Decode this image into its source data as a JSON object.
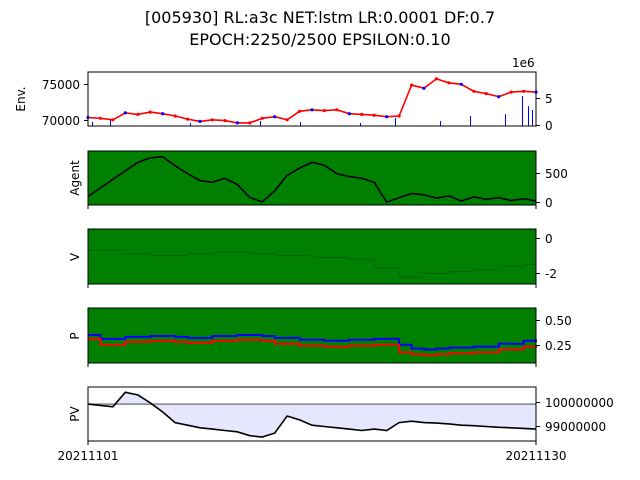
{
  "title": {
    "line1": "[005930] RL:a3c NET:lstm LR:0.0001 DF:0.7",
    "line2": "EPOCH:2250/2500 EPSILON:0.10"
  },
  "chart_data": [
    {
      "type": "line",
      "panel": "env",
      "ylabel": "Env.",
      "yticks": [
        "70000",
        "75000"
      ],
      "ylim": [
        69500,
        76500
      ],
      "y2ticks": [
        "0",
        "5"
      ],
      "y2_offset_label": "1e6",
      "y2lim": [
        0,
        9
      ],
      "series": [
        {
          "values": [
            70600,
            70500,
            70300,
            71200,
            71000,
            71300,
            71100,
            70800,
            70400,
            70100,
            70300,
            70200,
            69900,
            69900,
            70500,
            70700,
            70300,
            71400,
            71600,
            71500,
            71600,
            71100,
            71000,
            70900,
            70700,
            70800,
            74800,
            74400,
            75600,
            75100,
            74900,
            74000,
            73700,
            73300,
            73900,
            74000,
            73900
          ]
        }
      ],
      "colors": {
        "price": "#ff0000",
        "buy": "#ff0000",
        "sell": "#0000ff",
        "volume": "#0000ff"
      }
    },
    {
      "type": "line",
      "panel": "agent",
      "ylabel": "Agent",
      "yticks": [
        "0",
        "500"
      ],
      "ylim": [
        -50,
        900
      ],
      "series": [
        {
          "values": [
            100,
            250,
            400,
            550,
            700,
            780,
            800,
            640,
            500,
            380,
            350,
            420,
            310,
            80,
            5,
            200,
            470,
            600,
            700,
            650,
            500,
            450,
            420,
            350,
            0,
            80,
            150,
            130,
            70,
            110,
            20,
            90,
            50,
            80,
            30,
            60,
            20
          ]
        }
      ],
      "colors": {
        "background": "#008000",
        "line": "#000000"
      }
    },
    {
      "type": "line",
      "panel": "v",
      "ylabel": "V",
      "yticks": [
        "0",
        "-2"
      ],
      "ylim": [
        -2.6,
        0.5
      ],
      "series": [
        {
          "values": [
            -0.7,
            -0.7,
            -0.7,
            -0.9,
            -0.9,
            -1.0,
            -1.0,
            -1.0,
            -0.9,
            -0.9,
            -0.8,
            -0.8,
            -0.8,
            -0.9,
            -0.9,
            -1.0,
            -1.0,
            -1.0,
            -1.1,
            -1.1,
            -1.1,
            -1.2,
            -1.2,
            -1.7,
            -1.7,
            -2.2,
            -2.2,
            -2.0,
            -2.0,
            -1.9,
            -1.9,
            -1.8,
            -1.8,
            -1.6,
            -1.6,
            -1.5,
            -1.5
          ]
        }
      ],
      "colors": {
        "background": "#008000",
        "line": "#006400"
      }
    },
    {
      "type": "line",
      "panel": "p",
      "ylabel": "P",
      "yticks": [
        "0.50",
        "0.25"
      ],
      "ylim": [
        0.05,
        0.62
      ],
      "series": [
        {
          "values": [
            0.34,
            0.3,
            0.3,
            0.32,
            0.32,
            0.33,
            0.33,
            0.32,
            0.31,
            0.31,
            0.33,
            0.33,
            0.34,
            0.34,
            0.33,
            0.31,
            0.31,
            0.29,
            0.29,
            0.28,
            0.28,
            0.29,
            0.29,
            0.3,
            0.3,
            0.24,
            0.2,
            0.19,
            0.2,
            0.21,
            0.21,
            0.22,
            0.22,
            0.25,
            0.25,
            0.28,
            0.29
          ]
        },
        {
          "values": [
            0.3,
            0.24,
            0.24,
            0.27,
            0.27,
            0.28,
            0.28,
            0.27,
            0.26,
            0.26,
            0.28,
            0.28,
            0.29,
            0.29,
            0.28,
            0.25,
            0.25,
            0.23,
            0.23,
            0.22,
            0.22,
            0.23,
            0.23,
            0.24,
            0.24,
            0.16,
            0.14,
            0.13,
            0.14,
            0.15,
            0.15,
            0.16,
            0.16,
            0.19,
            0.19,
            0.22,
            0.23
          ]
        }
      ],
      "colors": {
        "background": "#008000",
        "upper": "#0000ff",
        "lower": "#ff0000"
      }
    },
    {
      "type": "area",
      "panel": "pv",
      "ylabel": "PV",
      "yticks": [
        "100000000",
        "99000000"
      ],
      "ylim": [
        98600000,
        100650000
      ],
      "baseline": 100000000,
      "xticks": [
        "20211101",
        "20211130"
      ],
      "series": [
        {
          "values": [
            100000000,
            99950000,
            99900000,
            100450000,
            100350000,
            100050000,
            99700000,
            99300000,
            99200000,
            99100000,
            99050000,
            99000000,
            98950000,
            98800000,
            98750000,
            98900000,
            99550000,
            99400000,
            99200000,
            99150000,
            99100000,
            99050000,
            99000000,
            99050000,
            99000000,
            99300000,
            99350000,
            99300000,
            99280000,
            99250000,
            99200000,
            99180000,
            99150000,
            99120000,
            99100000,
            99080000,
            99050000
          ]
        }
      ],
      "colors": {
        "fill": "#e6e6ff",
        "baseline": "#808080",
        "line": "#000000"
      }
    }
  ]
}
